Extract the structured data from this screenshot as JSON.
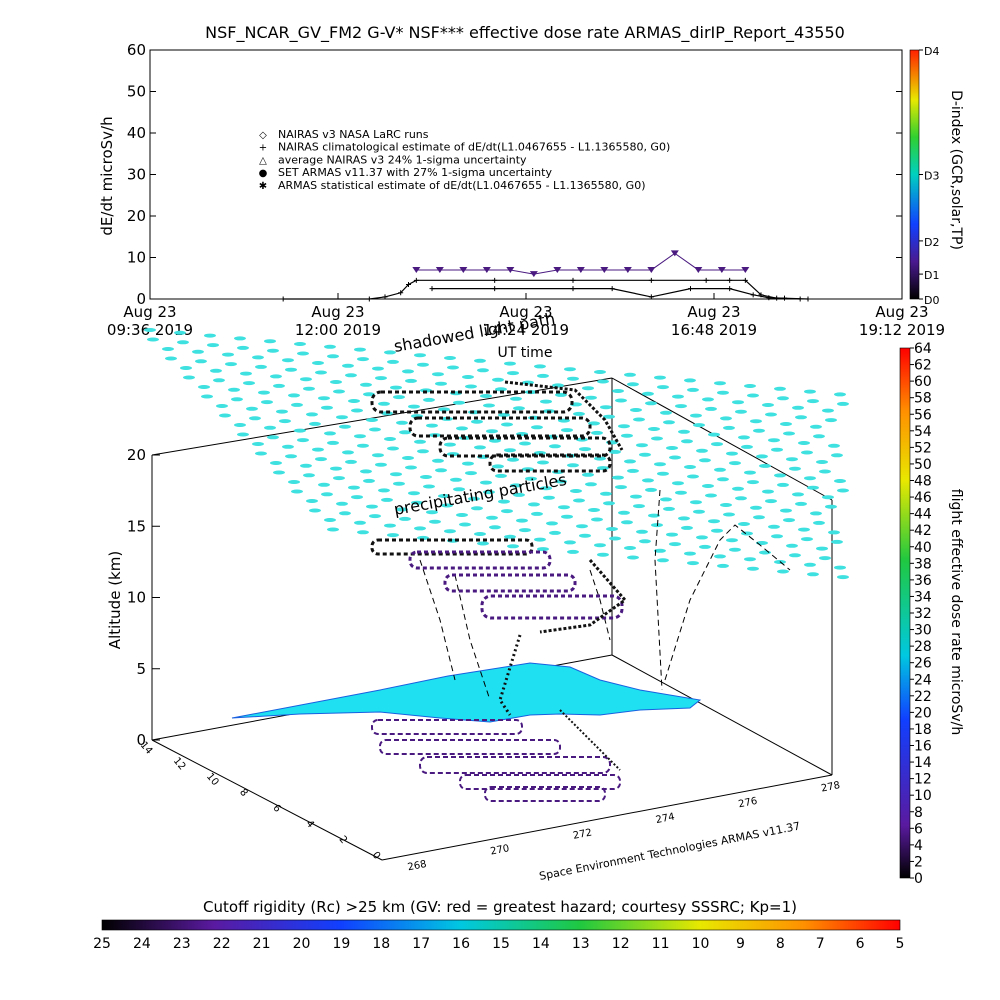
{
  "title": "NSF_NCAR_GV_FM2 G-V* NSF*** effective dose rate ARMAS_dirIP_Report_43550",
  "chart_data": [
    {
      "type": "line",
      "panel": "top-time-series",
      "ylabel": "dE/dt microSv/h",
      "xlabel": "UT time",
      "ylim": [
        0,
        60
      ],
      "yticks": [
        "0",
        "10",
        "20",
        "30",
        "40",
        "50",
        "60"
      ],
      "xticks": [
        {
          "line1": "Aug 23",
          "line2": "09:36 2019"
        },
        {
          "line1": "Aug 23",
          "line2": "12:00 2019"
        },
        {
          "line1": "Aug 23",
          "line2": "14:24 2019"
        },
        {
          "line1": "Aug 23",
          "line2": "16:48 2019"
        },
        {
          "line1": "Aug 23",
          "line2": "19:12 2019"
        }
      ],
      "xlim_hours": [
        9.6,
        19.2
      ],
      "legend": [
        {
          "symbol": "◇",
          "text": "NAIRAS v3 NASA LaRC runs"
        },
        {
          "symbol": "+",
          "text": "NAIRAS climatological estimate of dE/dt(L1.0467655 - L1.1365580, G0)"
        },
        {
          "symbol": "△",
          "text": "average NAIRAS v3 24% 1-sigma uncertainty"
        },
        {
          "symbol": "●",
          "text": "SET ARMAS v11.37 with 27% 1-sigma uncertainty"
        },
        {
          "symbol": "✱",
          "text": "ARMAS statistical estimate of dE/dt(L1.0467655 - L1.1365580, G0)"
        }
      ],
      "legend_position": "upper-left",
      "series": [
        {
          "name": "ARMAS statistical estimate of dE/dt(L1.0467655 - L1.1365580, G0)",
          "x": [
            11.3,
            12.4,
            12.6,
            12.8,
            12.9,
            13.0,
            14.0,
            15.0,
            16.0,
            16.7,
            17.0,
            17.2,
            17.4,
            17.6,
            17.9
          ],
          "y": [
            0,
            0,
            0.5,
            1.5,
            3.5,
            4.5,
            4.5,
            4.5,
            4.5,
            4.5,
            4.5,
            4.5,
            1.0,
            0.2,
            0
          ]
        },
        {
          "name": "NAIRAS climatological estimate of dE/dt(L1.0467655 - L1.1365580, G0)",
          "x": [
            13.2,
            14.0,
            15.0,
            15.5,
            16.0,
            16.5,
            17.0,
            17.3,
            17.5,
            17.7,
            18.0
          ],
          "y": [
            2.5,
            2.5,
            2.5,
            2.5,
            0.5,
            2.5,
            2.5,
            1.0,
            0.3,
            0.2,
            0
          ]
        },
        {
          "name": "SET ARMAS v11.37 with 27% 1-sigma uncertainty",
          "x": [
            13.0,
            13.3,
            13.6,
            13.9,
            14.2,
            14.5,
            14.8,
            15.1,
            15.4,
            15.7,
            16.0,
            16.3,
            16.6,
            16.9,
            17.2
          ],
          "y": [
            7,
            7,
            7,
            7,
            7,
            6,
            7,
            7,
            7,
            7,
            7,
            11,
            7,
            7,
            7
          ]
        }
      ],
      "d_index_bar": {
        "labels": [
          "D4",
          "D3",
          "D2",
          "D1",
          "D0"
        ],
        "values": [
          60,
          30,
          14,
          6,
          0
        ],
        "title": "D-index (GCR,solar,TP)"
      }
    },
    {
      "type": "scatter",
      "panel": "3d-flight-track",
      "zlabel": "Altitude (km)",
      "zticks": [
        "0",
        "5",
        "10",
        "15",
        "20"
      ],
      "lon_ticks": [
        "268",
        "270",
        "272",
        "274",
        "276",
        "278"
      ],
      "lat_ticks": [
        "0",
        "2",
        "4",
        "6",
        "8",
        "10",
        "12",
        "14"
      ],
      "annotations": [
        "shadowed light path",
        "precipitating particles"
      ],
      "credit": "Space Environment Technologies ARMAS v11.37",
      "dose_colorbar": {
        "title": "flight effective dose rate microSv/h",
        "ticks": [
          "0",
          "2",
          "4",
          "6",
          "8",
          "10",
          "12",
          "14",
          "16",
          "18",
          "20",
          "22",
          "24",
          "26",
          "28",
          "30",
          "32",
          "34",
          "36",
          "38",
          "40",
          "42",
          "44",
          "46",
          "48",
          "50",
          "52",
          "54",
          "56",
          "58",
          "60",
          "62",
          "64"
        ]
      }
    },
    {
      "type": "heatmap",
      "panel": "cutoff-rigidity-colorbar",
      "title": "Cutoff rigidity (Rc) >25 km (GV: red = greatest hazard; courtesy SSSRC; Kp=1)",
      "ticks": [
        "25",
        "24",
        "23",
        "22",
        "21",
        "20",
        "19",
        "18",
        "17",
        "16",
        "15",
        "14",
        "13",
        "12",
        "11",
        "10",
        "9",
        "8",
        "7",
        "6",
        "5"
      ]
    }
  ]
}
